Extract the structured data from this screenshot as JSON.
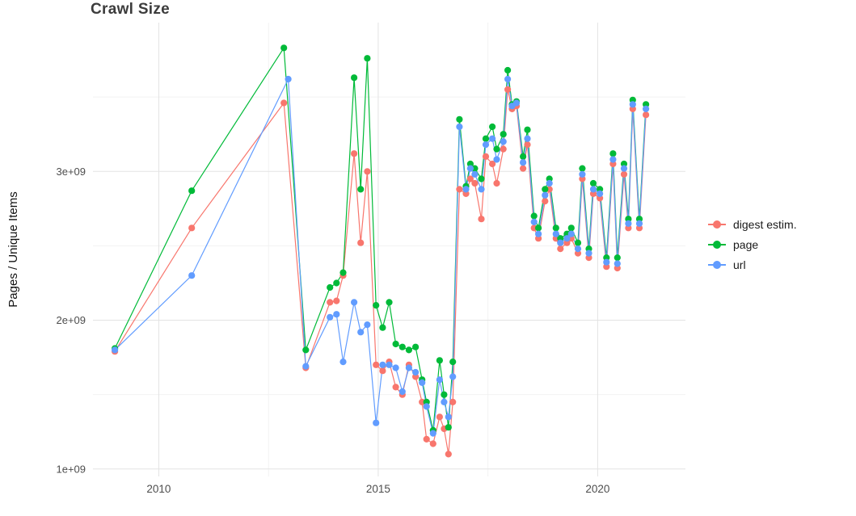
{
  "page": {
    "background": "#ffffff"
  },
  "chart_data": {
    "type": "line",
    "title": "Crawl Size",
    "xlabel": "",
    "ylabel": "Pages / Unique Items",
    "y_unit": "values are in units of 1e9 (billions), matching axis labels 1e+09..3e+09",
    "x_domain": [
      2008.5,
      2022
    ],
    "y_domain": [
      0.95,
      4.0
    ],
    "grid_on": true,
    "x_ticks": [
      2010,
      2015,
      2020
    ],
    "x_tick_labels": [
      "2010",
      "2015",
      "2020"
    ],
    "x_minor_ticks": [
      2012.5,
      2017.5
    ],
    "y_ticks": [
      1,
      2,
      3
    ],
    "y_tick_labels": [
      "1e+09",
      "2e+09",
      "3e+09"
    ],
    "y_minor_ticks": [
      1.5,
      2.5,
      3.5
    ],
    "grid": {
      "major_color": "#e3e3e3",
      "minor_color": "#f2f2f2"
    },
    "axis_text_color": "#4d4d4d",
    "title_color": "#3c3c3c",
    "legend": {
      "position": "right"
    },
    "series": [
      {
        "name": "digest estim.",
        "color": "#F8766D",
        "points": [
          [
            2009.0,
            1.79
          ],
          [
            2010.75,
            2.62
          ],
          [
            2012.85,
            3.46
          ],
          [
            2013.35,
            1.68
          ],
          [
            2013.9,
            2.12
          ],
          [
            2014.05,
            2.13
          ],
          [
            2014.2,
            2.3
          ],
          [
            2014.45,
            3.12
          ],
          [
            2014.6,
            2.52
          ],
          [
            2014.75,
            3.0
          ],
          [
            2014.95,
            1.7
          ],
          [
            2015.1,
            1.66
          ],
          [
            2015.25,
            1.72
          ],
          [
            2015.4,
            1.55
          ],
          [
            2015.55,
            1.5
          ],
          [
            2015.7,
            1.7
          ],
          [
            2015.85,
            1.62
          ],
          [
            2016.0,
            1.45
          ],
          [
            2016.1,
            1.2
          ],
          [
            2016.25,
            1.17
          ],
          [
            2016.4,
            1.35
          ],
          [
            2016.5,
            1.27
          ],
          [
            2016.6,
            1.1
          ],
          [
            2016.7,
            1.45
          ],
          [
            2016.85,
            2.88
          ],
          [
            2017.0,
            2.85
          ],
          [
            2017.1,
            2.95
          ],
          [
            2017.2,
            2.92
          ],
          [
            2017.35,
            2.68
          ],
          [
            2017.45,
            3.1
          ],
          [
            2017.6,
            3.05
          ],
          [
            2017.7,
            2.92
          ],
          [
            2017.85,
            3.15
          ],
          [
            2017.95,
            3.55
          ],
          [
            2018.05,
            3.42
          ],
          [
            2018.15,
            3.44
          ],
          [
            2018.3,
            3.02
          ],
          [
            2018.4,
            3.18
          ],
          [
            2018.55,
            2.62
          ],
          [
            2018.65,
            2.55
          ],
          [
            2018.8,
            2.8
          ],
          [
            2018.9,
            2.88
          ],
          [
            2019.05,
            2.55
          ],
          [
            2019.15,
            2.48
          ],
          [
            2019.3,
            2.52
          ],
          [
            2019.4,
            2.55
          ],
          [
            2019.55,
            2.45
          ],
          [
            2019.65,
            2.95
          ],
          [
            2019.8,
            2.42
          ],
          [
            2019.9,
            2.85
          ],
          [
            2020.05,
            2.82
          ],
          [
            2020.2,
            2.36
          ],
          [
            2020.35,
            3.05
          ],
          [
            2020.45,
            2.35
          ],
          [
            2020.6,
            2.98
          ],
          [
            2020.7,
            2.62
          ],
          [
            2020.8,
            3.42
          ],
          [
            2020.95,
            2.62
          ],
          [
            2021.1,
            3.38
          ]
        ]
      },
      {
        "name": "page",
        "color": "#00BA38",
        "points": [
          [
            2009.0,
            1.81
          ],
          [
            2010.75,
            2.87
          ],
          [
            2012.85,
            3.83
          ],
          [
            2013.35,
            1.8
          ],
          [
            2013.9,
            2.22
          ],
          [
            2014.05,
            2.25
          ],
          [
            2014.2,
            2.32
          ],
          [
            2014.45,
            3.63
          ],
          [
            2014.6,
            2.88
          ],
          [
            2014.75,
            3.76
          ],
          [
            2014.95,
            2.1
          ],
          [
            2015.1,
            1.95
          ],
          [
            2015.25,
            2.12
          ],
          [
            2015.4,
            1.84
          ],
          [
            2015.55,
            1.82
          ],
          [
            2015.7,
            1.8
          ],
          [
            2015.85,
            1.82
          ],
          [
            2016.0,
            1.6
          ],
          [
            2016.1,
            1.45
          ],
          [
            2016.25,
            1.26
          ],
          [
            2016.4,
            1.73
          ],
          [
            2016.5,
            1.5
          ],
          [
            2016.6,
            1.28
          ],
          [
            2016.7,
            1.72
          ],
          [
            2016.85,
            3.35
          ],
          [
            2017.0,
            2.9
          ],
          [
            2017.1,
            3.05
          ],
          [
            2017.2,
            3.02
          ],
          [
            2017.35,
            2.95
          ],
          [
            2017.45,
            3.22
          ],
          [
            2017.6,
            3.3
          ],
          [
            2017.7,
            3.15
          ],
          [
            2017.85,
            3.25
          ],
          [
            2017.95,
            3.68
          ],
          [
            2018.05,
            3.45
          ],
          [
            2018.15,
            3.47
          ],
          [
            2018.3,
            3.1
          ],
          [
            2018.4,
            3.28
          ],
          [
            2018.55,
            2.7
          ],
          [
            2018.65,
            2.62
          ],
          [
            2018.8,
            2.88
          ],
          [
            2018.9,
            2.95
          ],
          [
            2019.05,
            2.62
          ],
          [
            2019.15,
            2.55
          ],
          [
            2019.3,
            2.58
          ],
          [
            2019.4,
            2.62
          ],
          [
            2019.55,
            2.52
          ],
          [
            2019.65,
            3.02
          ],
          [
            2019.8,
            2.48
          ],
          [
            2019.9,
            2.92
          ],
          [
            2020.05,
            2.88
          ],
          [
            2020.2,
            2.42
          ],
          [
            2020.35,
            3.12
          ],
          [
            2020.45,
            2.42
          ],
          [
            2020.6,
            3.05
          ],
          [
            2020.7,
            2.68
          ],
          [
            2020.8,
            3.48
          ],
          [
            2020.95,
            2.68
          ],
          [
            2021.1,
            3.45
          ]
        ]
      },
      {
        "name": "url",
        "color": "#619CFF",
        "points": [
          [
            2009.0,
            1.8
          ],
          [
            2010.75,
            2.3
          ],
          [
            2012.95,
            3.62
          ],
          [
            2013.35,
            1.69
          ],
          [
            2013.9,
            2.02
          ],
          [
            2014.05,
            2.04
          ],
          [
            2014.2,
            1.72
          ],
          [
            2014.45,
            2.12
          ],
          [
            2014.6,
            1.92
          ],
          [
            2014.75,
            1.97
          ],
          [
            2014.95,
            1.31
          ],
          [
            2015.1,
            1.7
          ],
          [
            2015.25,
            1.7
          ],
          [
            2015.4,
            1.68
          ],
          [
            2015.55,
            1.52
          ],
          [
            2015.7,
            1.68
          ],
          [
            2015.85,
            1.65
          ],
          [
            2016.0,
            1.58
          ],
          [
            2016.1,
            1.42
          ],
          [
            2016.25,
            1.24
          ],
          [
            2016.4,
            1.6
          ],
          [
            2016.5,
            1.45
          ],
          [
            2016.6,
            1.35
          ],
          [
            2016.7,
            1.62
          ],
          [
            2016.85,
            3.3
          ],
          [
            2017.0,
            2.88
          ],
          [
            2017.1,
            3.02
          ],
          [
            2017.2,
            2.98
          ],
          [
            2017.35,
            2.88
          ],
          [
            2017.45,
            3.18
          ],
          [
            2017.6,
            3.22
          ],
          [
            2017.7,
            3.08
          ],
          [
            2017.85,
            3.2
          ],
          [
            2017.95,
            3.62
          ],
          [
            2018.05,
            3.44
          ],
          [
            2018.15,
            3.46
          ],
          [
            2018.3,
            3.06
          ],
          [
            2018.4,
            3.22
          ],
          [
            2018.55,
            2.66
          ],
          [
            2018.65,
            2.58
          ],
          [
            2018.8,
            2.84
          ],
          [
            2018.9,
            2.92
          ],
          [
            2019.05,
            2.58
          ],
          [
            2019.15,
            2.52
          ],
          [
            2019.3,
            2.55
          ],
          [
            2019.4,
            2.58
          ],
          [
            2019.55,
            2.48
          ],
          [
            2019.65,
            2.98
          ],
          [
            2019.8,
            2.45
          ],
          [
            2019.9,
            2.88
          ],
          [
            2020.05,
            2.85
          ],
          [
            2020.2,
            2.39
          ],
          [
            2020.35,
            3.08
          ],
          [
            2020.45,
            2.38
          ],
          [
            2020.6,
            3.02
          ],
          [
            2020.7,
            2.65
          ],
          [
            2020.8,
            3.45
          ],
          [
            2020.95,
            2.65
          ],
          [
            2021.1,
            3.42
          ]
        ]
      }
    ]
  }
}
